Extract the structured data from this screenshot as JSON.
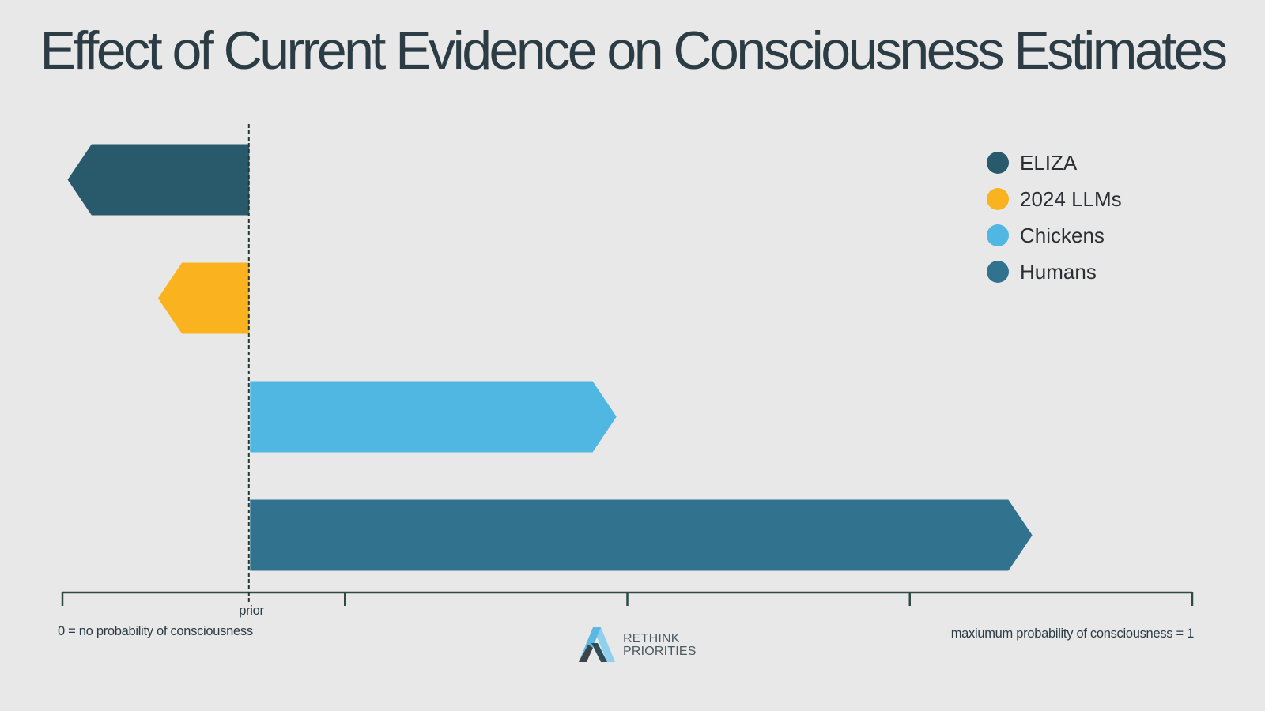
{
  "title": "Effect of Current Evidence on Consciousness Estimates",
  "axis": {
    "prior_label": "prior",
    "min_label": "0 = no probability of consciousness",
    "max_label": "maxiumum probability of consciousness = 1"
  },
  "logo": {
    "name_line1": "RETHINK",
    "name_line2": "PRIORITIES",
    "icon": "rethink-priorities-logo-mark"
  },
  "colors": {
    "eliza": "#285a6c",
    "llms": "#fbb21f",
    "chickens": "#50b6e2",
    "humans": "#31738f",
    "axis": "#2e4a43"
  },
  "chart_data": {
    "type": "bar",
    "orientation": "horizontal",
    "xlim": [
      0,
      1
    ],
    "prior": 0.165,
    "ticks": [
      0,
      0.25,
      0.5,
      0.75,
      1
    ],
    "legend_position": "top-right",
    "grid": false,
    "series": [
      {
        "name": "ELIZA",
        "start": 0.165,
        "end": 0.005,
        "color": "#285a6c"
      },
      {
        "name": "2024 LLMs",
        "start": 0.165,
        "end": 0.085,
        "color": "#fbb21f"
      },
      {
        "name": "Chickens",
        "start": 0.165,
        "end": 0.49,
        "color": "#50b6e2"
      },
      {
        "name": "Humans",
        "start": 0.165,
        "end": 0.858,
        "color": "#31738f"
      }
    ]
  }
}
